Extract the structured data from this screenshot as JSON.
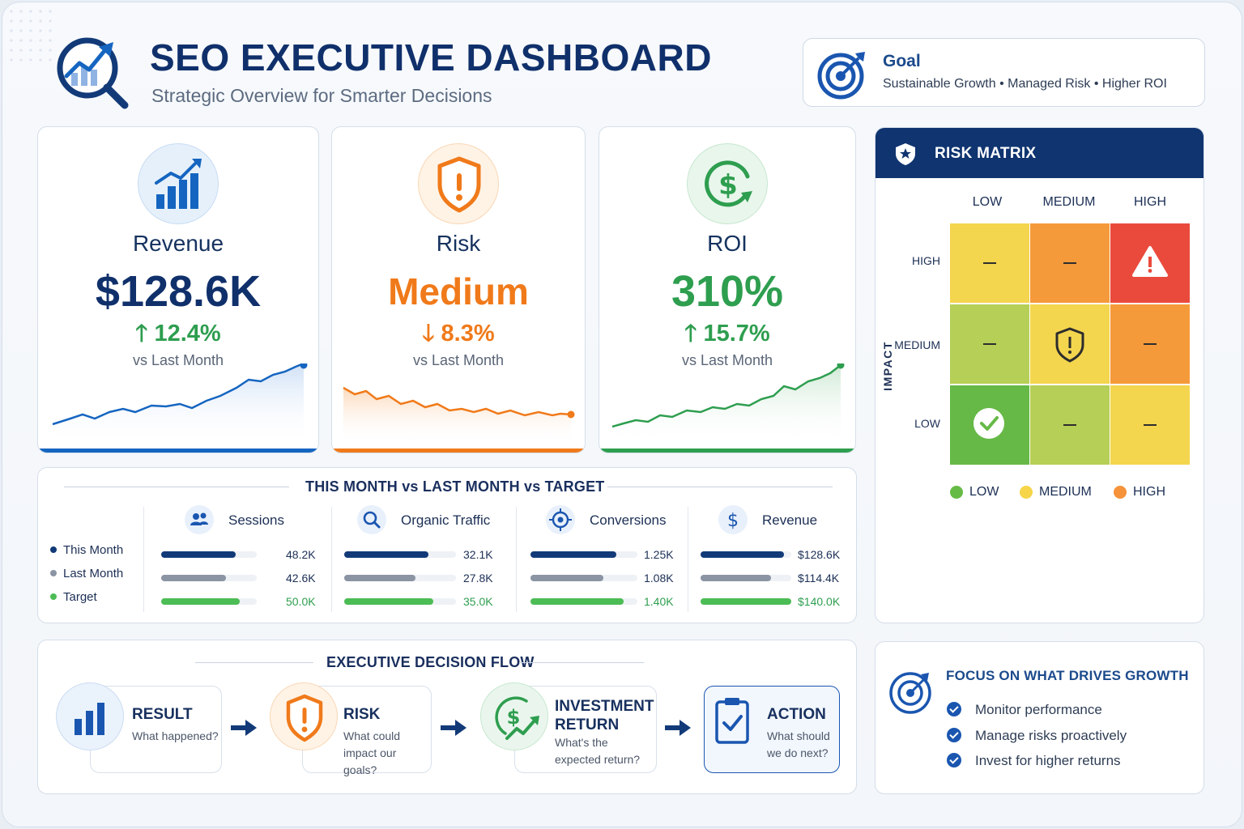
{
  "header": {
    "title": "SEO EXECUTIVE DASHBOARD",
    "subtitle": "Strategic Overview for Smarter Decisions"
  },
  "goal": {
    "title": "Goal",
    "text": "Sustainable Growth  •  Managed Risk  •  Higher ROI"
  },
  "kpis": [
    {
      "label": "Revenue",
      "value": "$128.6K",
      "change": "12.4%",
      "direction": "up",
      "compare": "vs Last Month",
      "color": "#1565c0",
      "value_color": "#10306b",
      "change_color": "#2e9e4f",
      "icon": "bar-chart-growth-icon"
    },
    {
      "label": "Risk",
      "value": "Medium",
      "change": "8.3%",
      "direction": "down",
      "compare": "vs Last Month",
      "color": "#f07a1a",
      "value_color": "#f07a1a",
      "change_color": "#f07a1a",
      "icon": "shield-alert-icon"
    },
    {
      "label": "ROI",
      "value": "310%",
      "change": "15.7%",
      "direction": "up",
      "compare": "vs Last Month",
      "color": "#2e9e4f",
      "value_color": "#2e9e4f",
      "change_color": "#2e9e4f",
      "icon": "dollar-cycle-icon"
    }
  ],
  "risk_matrix": {
    "title": "RISK MATRIX",
    "columns": [
      "LOW",
      "MEDIUM",
      "HIGH"
    ],
    "rows": [
      "HIGH",
      "MEDIUM",
      "LOW"
    ],
    "axis_label": "IMPACT",
    "cells": [
      [
        "—",
        "—",
        "warning"
      ],
      [
        "—",
        "shield",
        "—"
      ],
      [
        "check",
        "—",
        "—"
      ]
    ],
    "colors": {
      "green": "#66b947",
      "lightgreen": "#b6cf57",
      "yellow": "#f4d54e",
      "orange": "#f59a3a",
      "red": "#ea4a3c"
    },
    "legend": [
      {
        "label": "LOW",
        "color": "#66bb46"
      },
      {
        "label": "MEDIUM",
        "color": "#f6d549"
      },
      {
        "label": "HIGH",
        "color": "#f5923a"
      }
    ]
  },
  "comparison": {
    "title": "THIS MONTH vs LAST MONTH vs TARGET",
    "legend": [
      {
        "label": "This Month",
        "color": "#123a78"
      },
      {
        "label": "Last Month",
        "color": "#8a94a3"
      },
      {
        "label": "Target",
        "color": "#4cbc55"
      }
    ],
    "metrics": [
      {
        "label": "Sessions",
        "icon": "users-icon",
        "values": [
          "48.2K",
          "42.6K",
          "50.0K"
        ],
        "fractions": [
          0.78,
          0.68,
          0.82
        ]
      },
      {
        "label": "Organic Traffic",
        "icon": "search-icon",
        "values": [
          "32.1K",
          "27.8K",
          "35.0K"
        ],
        "fractions": [
          0.75,
          0.64,
          0.8
        ]
      },
      {
        "label": "Conversions",
        "icon": "target-icon",
        "values": [
          "1.25K",
          "1.08K",
          "1.40K"
        ],
        "fractions": [
          0.8,
          0.68,
          0.87
        ]
      },
      {
        "label": "Revenue",
        "icon": "dollar-icon",
        "values": [
          "$128.6K",
          "$114.4K",
          "$140.0K"
        ],
        "fractions": [
          0.92,
          0.78,
          1.0
        ]
      }
    ]
  },
  "flow": {
    "title": "EXECUTIVE DECISION FLOW",
    "steps": [
      {
        "title": "RESULT",
        "question": "What happened?"
      },
      {
        "title": "RISK",
        "question": "What could impact our goals?"
      },
      {
        "title": "INVESTMENT RETURN",
        "question": "What's the expected return?"
      },
      {
        "title": "ACTION",
        "question": "What should we do next?"
      }
    ]
  },
  "focus": {
    "title": "FOCUS ON WHAT DRIVES GROWTH",
    "items": [
      "Monitor performance",
      "Manage risks proactively",
      "Invest for higher returns"
    ]
  }
}
